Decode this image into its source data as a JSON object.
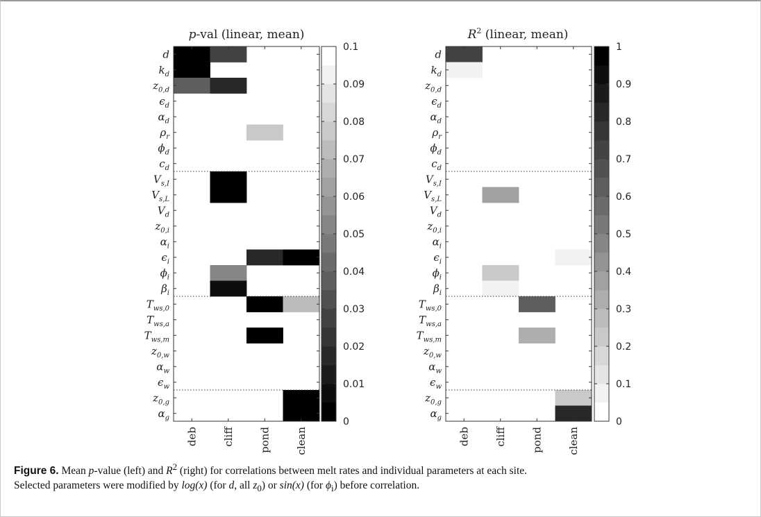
{
  "parameter_labels": [
    [
      "d",
      ""
    ],
    [
      "k",
      "d"
    ],
    [
      "z",
      "0,d"
    ],
    [
      "ϵ",
      "d"
    ],
    [
      "α",
      "d"
    ],
    [
      "ρ",
      "r"
    ],
    [
      "ϕ",
      "d"
    ],
    [
      "c",
      "d"
    ],
    [
      "V",
      "s,I"
    ],
    [
      "V",
      "s,L"
    ],
    [
      "V",
      "d"
    ],
    [
      "z",
      "0,i"
    ],
    [
      "α",
      "i"
    ],
    [
      "ϵ",
      "i"
    ],
    [
      "ϕ",
      "i"
    ],
    [
      "β",
      "i"
    ],
    [
      "T",
      "ws,0"
    ],
    [
      "T",
      "ws,a"
    ],
    [
      "T",
      "ws,m"
    ],
    [
      "z",
      "0,w"
    ],
    [
      "α",
      "w"
    ],
    [
      "ϵ",
      "w"
    ],
    [
      "z",
      "0,g"
    ],
    [
      "α",
      "g"
    ]
  ],
  "chart_data": [
    {
      "type": "heatmap",
      "title_italic": "p",
      "title_rest": "-val (linear, mean)",
      "x_categories": [
        "deb",
        "cliff",
        "pond",
        "clean"
      ],
      "y_categories": [
        "d",
        "k_d",
        "z_0,d",
        "ϵ_d",
        "α_d",
        "ρ_r",
        "ϕ_d",
        "c_d",
        "V_s,I",
        "V_s,L",
        "V_d",
        "z_0,i",
        "α_i",
        "ϵ_i",
        "ϕ_i",
        "β_i",
        "T_ws,0",
        "T_ws,a",
        "T_ws,m",
        "z_0,w",
        "α_w",
        "ϵ_w",
        "z_0,g",
        "α_g"
      ],
      "colormap": "gray",
      "color_range": [
        0,
        0.1
      ],
      "colorbar_ticks": [
        "0",
        "0.01",
        "0.02",
        "0.03",
        "0.04",
        "0.05",
        "0.06",
        "0.07",
        "0.08",
        "0.09",
        "0.1"
      ],
      "group_separators_after_rows": [
        8,
        16,
        22
      ],
      "values": [
        [
          0.0,
          0.025,
          0.1,
          0.1
        ],
        [
          0.0,
          0.1,
          0.1,
          0.1
        ],
        [
          0.035,
          0.015,
          0.1,
          0.1
        ],
        [
          0.1,
          0.1,
          0.1,
          0.1
        ],
        [
          0.1,
          0.1,
          0.1,
          0.1
        ],
        [
          0.1,
          0.1,
          0.08,
          0.1
        ],
        [
          0.1,
          0.1,
          0.1,
          0.1
        ],
        [
          0.1,
          0.1,
          0.1,
          0.1
        ],
        [
          0.1,
          0.0,
          0.1,
          0.1
        ],
        [
          0.1,
          0.0,
          0.1,
          0.1
        ],
        [
          0.1,
          0.1,
          0.1,
          0.1
        ],
        [
          0.1,
          0.1,
          0.1,
          0.1
        ],
        [
          0.1,
          0.1,
          0.1,
          0.1
        ],
        [
          0.1,
          0.1,
          0.02,
          0.0
        ],
        [
          0.1,
          0.055,
          0.1,
          0.1
        ],
        [
          0.1,
          0.01,
          0.1,
          0.1
        ],
        [
          0.1,
          0.1,
          0.0,
          0.07
        ],
        [
          0.1,
          0.1,
          0.1,
          0.1
        ],
        [
          0.1,
          0.1,
          0.0,
          0.1
        ],
        [
          0.1,
          0.1,
          0.1,
          0.1
        ],
        [
          0.1,
          0.1,
          0.1,
          0.1
        ],
        [
          0.1,
          0.1,
          0.1,
          0.1
        ],
        [
          0.1,
          0.1,
          0.1,
          0.0
        ],
        [
          0.1,
          0.1,
          0.1,
          0.0
        ]
      ]
    },
    {
      "type": "heatmap",
      "title_italic": "R",
      "title_sup": "2",
      "title_rest": " (linear, mean)",
      "x_categories": [
        "deb",
        "cliff",
        "pond",
        "clean"
      ],
      "y_categories": [
        "d",
        "k_d",
        "z_0,d",
        "ϵ_d",
        "α_d",
        "ρ_r",
        "ϕ_d",
        "c_d",
        "V_s,I",
        "V_s,L",
        "V_d",
        "z_0,i",
        "α_i",
        "ϵ_i",
        "ϕ_i",
        "β_i",
        "T_ws,0",
        "T_ws,a",
        "T_ws,m",
        "z_0,w",
        "α_w",
        "ϵ_w",
        "z_0,g",
        "α_g"
      ],
      "colormap": "gray_reversed",
      "color_range": [
        0,
        1
      ],
      "colorbar_ticks": [
        "0",
        "0.1",
        "0.2",
        "0.3",
        "0.4",
        "0.5",
        "0.6",
        "0.7",
        "0.8",
        "0.9",
        "1"
      ],
      "group_separators_after_rows": [
        8,
        16,
        22
      ],
      "values": [
        [
          0.7,
          0.0,
          0.0,
          0.0
        ],
        [
          0.07,
          0.0,
          0.0,
          0.0
        ],
        [
          0.0,
          0.0,
          0.0,
          0.0
        ],
        [
          0.0,
          0.0,
          0.0,
          0.0
        ],
        [
          0.0,
          0.0,
          0.0,
          0.0
        ],
        [
          0.0,
          0.0,
          0.0,
          0.0
        ],
        [
          0.0,
          0.0,
          0.0,
          0.0
        ],
        [
          0.0,
          0.0,
          0.0,
          0.0
        ],
        [
          0.0,
          0.0,
          0.0,
          0.0
        ],
        [
          0.0,
          0.38,
          0.0,
          0.0
        ],
        [
          0.0,
          0.0,
          0.0,
          0.0
        ],
        [
          0.0,
          0.0,
          0.0,
          0.0
        ],
        [
          0.0,
          0.0,
          0.0,
          0.0
        ],
        [
          0.0,
          0.0,
          0.0,
          0.07
        ],
        [
          0.0,
          0.22,
          0.0,
          0.0
        ],
        [
          0.0,
          0.05,
          0.0,
          0.0
        ],
        [
          0.0,
          0.0,
          0.6,
          0.0
        ],
        [
          0.0,
          0.0,
          0.0,
          0.0
        ],
        [
          0.0,
          0.0,
          0.3,
          0.0
        ],
        [
          0.0,
          0.0,
          0.0,
          0.0
        ],
        [
          0.0,
          0.0,
          0.0,
          0.0
        ],
        [
          0.0,
          0.0,
          0.0,
          0.0
        ],
        [
          0.0,
          0.0,
          0.0,
          0.2
        ],
        [
          0.0,
          0.0,
          0.0,
          0.8
        ]
      ]
    }
  ],
  "caption": {
    "label": "Figure 6.",
    "text_1": " Mean ",
    "p_italic": "p",
    "text_2": "-value (left) and ",
    "r_italic": "R",
    "r_sup": "2",
    "text_3": " (right) for correlations between melt rates and individual parameters at each site.",
    "text_4": "Selected parameters were modified by ",
    "log_x": "log(x)",
    "text_5": " (for ",
    "d_italic": "d",
    "text_6": ", all ",
    "z_italic": "z",
    "z_sub": "0",
    "text_7": ") or ",
    "sin_x": "sin(x)",
    "text_8": " (for ",
    "phi_italic": "ϕ",
    "phi_sub": "i",
    "text_9": ") before correlation."
  }
}
